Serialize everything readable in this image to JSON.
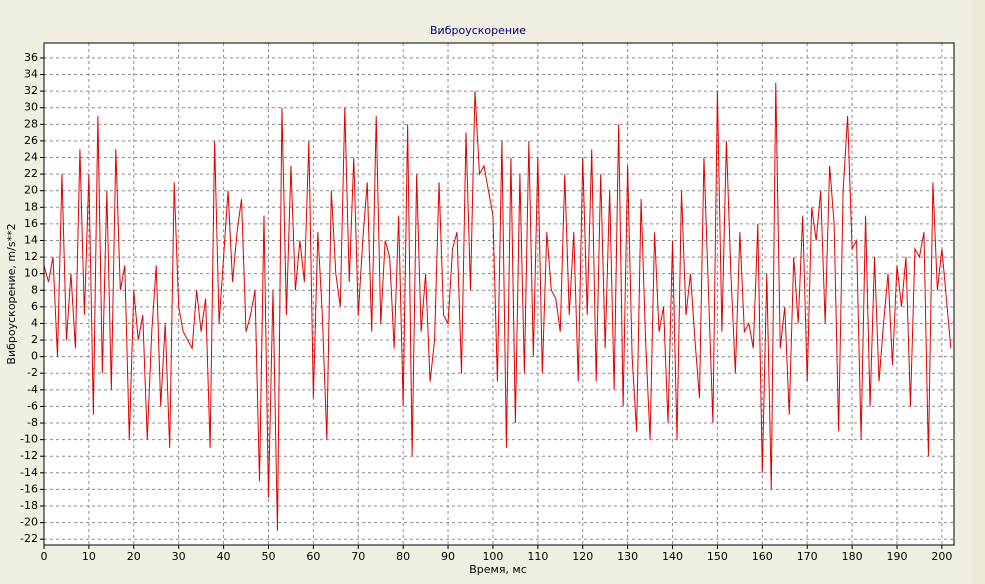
{
  "chart_data": {
    "type": "line",
    "title": "Виброускорение",
    "x_label": "Время, мс",
    "y_label": "Виброускорение, m/s**2",
    "xlim": [
      0,
      202.7
    ],
    "ylim": [
      -22.7,
      37.8
    ],
    "xticks": [
      0,
      10,
      20,
      30,
      40,
      50,
      60,
      70,
      80,
      90,
      100,
      110,
      120,
      130,
      140,
      150,
      160,
      170,
      180,
      190,
      200
    ],
    "yticks": [
      -22,
      -20,
      -18,
      -16,
      -14,
      -12,
      -10,
      -8,
      -6,
      -4,
      -2,
      0,
      2,
      4,
      6,
      8,
      10,
      12,
      14,
      16,
      18,
      20,
      22,
      24,
      26,
      28,
      30,
      32,
      34,
      36
    ],
    "grid": true,
    "x": [
      0,
      1,
      2,
      3,
      4,
      5,
      6,
      7,
      8,
      9,
      10,
      11,
      12,
      13,
      14,
      15,
      16,
      17,
      18,
      19,
      20,
      21,
      22,
      23,
      24,
      25,
      26,
      27,
      28,
      29,
      30,
      31,
      32,
      33,
      34,
      35,
      36,
      37,
      38,
      39,
      40,
      41,
      42,
      43,
      44,
      45,
      46,
      47,
      48,
      49,
      50,
      51,
      52,
      53,
      54,
      55,
      56,
      57,
      58,
      59,
      60,
      61,
      62,
      63,
      64,
      65,
      66,
      67,
      68,
      69,
      70,
      71,
      72,
      73,
      74,
      75,
      76,
      77,
      78,
      79,
      80,
      81,
      82,
      83,
      84,
      85,
      86,
      87,
      88,
      89,
      90,
      91,
      92,
      93,
      94,
      95,
      96,
      97,
      98,
      99,
      100,
      101,
      102,
      103,
      104,
      105,
      106,
      107,
      108,
      109,
      110,
      111,
      112,
      113,
      114,
      115,
      116,
      117,
      118,
      119,
      120,
      121,
      122,
      123,
      124,
      125,
      126,
      127,
      128,
      129,
      130,
      131,
      132,
      133,
      134,
      135,
      136,
      137,
      138,
      139,
      140,
      141,
      142,
      143,
      144,
      145,
      146,
      147,
      148,
      149,
      150,
      151,
      152,
      153,
      154,
      155,
      156,
      157,
      158,
      159,
      160,
      161,
      162,
      163,
      164,
      165,
      166,
      167,
      168,
      169,
      170,
      171,
      172,
      173,
      174,
      175,
      176,
      177,
      178,
      179,
      180,
      181,
      182,
      183,
      184,
      185,
      186,
      187,
      188,
      189,
      190,
      191,
      192,
      193,
      194,
      195,
      196,
      197,
      198,
      199,
      200,
      201,
      202
    ],
    "series": [
      {
        "color": "#e00000",
        "values": [
          11,
          9,
          12,
          0,
          22,
          2,
          10,
          1,
          25,
          5,
          22,
          -7,
          29,
          -2,
          20,
          -4,
          25,
          8,
          11,
          -10,
          8,
          2,
          5,
          -10,
          3,
          11,
          -6,
          4,
          -11,
          21,
          6,
          3,
          2,
          1,
          8,
          3,
          7,
          -11,
          26,
          4,
          12,
          20,
          9,
          15,
          19,
          3,
          5,
          8,
          -15,
          17,
          -17,
          8,
          -21,
          30,
          5,
          23,
          8,
          14,
          9,
          26,
          -5,
          15,
          5,
          -10,
          20,
          10,
          6,
          30,
          9,
          24,
          5,
          14,
          21,
          3,
          29,
          4,
          14,
          12,
          1,
          17,
          -6,
          28,
          -12,
          22,
          3,
          10,
          -3,
          2,
          21,
          5,
          4,
          13,
          15,
          -2,
          27,
          8,
          32,
          22,
          23,
          20,
          17,
          -3,
          26,
          -11,
          24,
          -8,
          22,
          -2,
          26,
          0,
          24,
          -2,
          15,
          8,
          7,
          3,
          22,
          5,
          15,
          -3,
          24,
          5,
          25,
          -3,
          22,
          1,
          20,
          -4,
          28,
          -6,
          23,
          0,
          -9,
          19,
          2,
          -10,
          15,
          3,
          6,
          -8,
          14,
          -10,
          20,
          5,
          10,
          2,
          -5,
          24,
          8,
          -8,
          32,
          3,
          26,
          10,
          -2,
          15,
          3,
          4,
          1,
          16,
          -14,
          10,
          -16,
          33,
          1,
          6,
          -7,
          12,
          4,
          17,
          -3,
          18,
          14,
          20,
          4,
          23,
          16,
          -9,
          20,
          29,
          13,
          14,
          -10,
          17,
          -6,
          12,
          -3,
          4,
          10,
          -1,
          11,
          6,
          12,
          -6,
          13,
          12,
          15,
          -12,
          21,
          8,
          13,
          7,
          1
        ]
      }
    ]
  }
}
